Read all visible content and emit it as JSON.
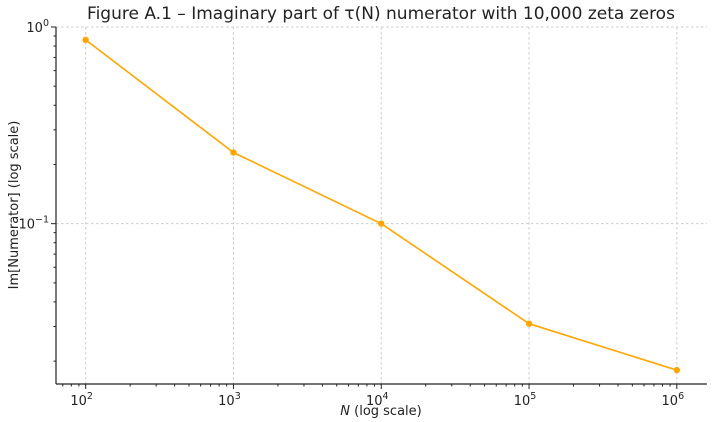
{
  "chart_data": {
    "type": "line",
    "title": "Figure A.1 – Imaginary part of τ(N) numerator with 10,000 zeta zeros",
    "xlabel_var": "N",
    "xlabel_rest": " (log scale)",
    "ylabel": "Im[Numerator] (log scale)",
    "x_scale": "log",
    "y_scale": "log",
    "xlim": [
      63,
      1600000
    ],
    "ylim": [
      0.0153,
      1.0
    ],
    "grid": true,
    "color": "#FFA500",
    "series": [
      {
        "x": [
          100,
          1000,
          10000,
          100000,
          1000000
        ],
        "y": [
          0.86,
          0.23,
          0.1,
          0.031,
          0.018
        ]
      }
    ],
    "x_major_ticks": [
      {
        "value": 100,
        "base": "10",
        "exp": "2"
      },
      {
        "value": 1000,
        "base": "10",
        "exp": "3"
      },
      {
        "value": 10000,
        "base": "10",
        "exp": "4"
      },
      {
        "value": 100000,
        "base": "10",
        "exp": "5"
      },
      {
        "value": 1000000,
        "base": "10",
        "exp": "6"
      }
    ],
    "y_major_ticks": [
      {
        "value": 1.0,
        "base": "10",
        "exp": "0"
      },
      {
        "value": 0.1,
        "base": "10",
        "exp": "−1"
      }
    ]
  }
}
